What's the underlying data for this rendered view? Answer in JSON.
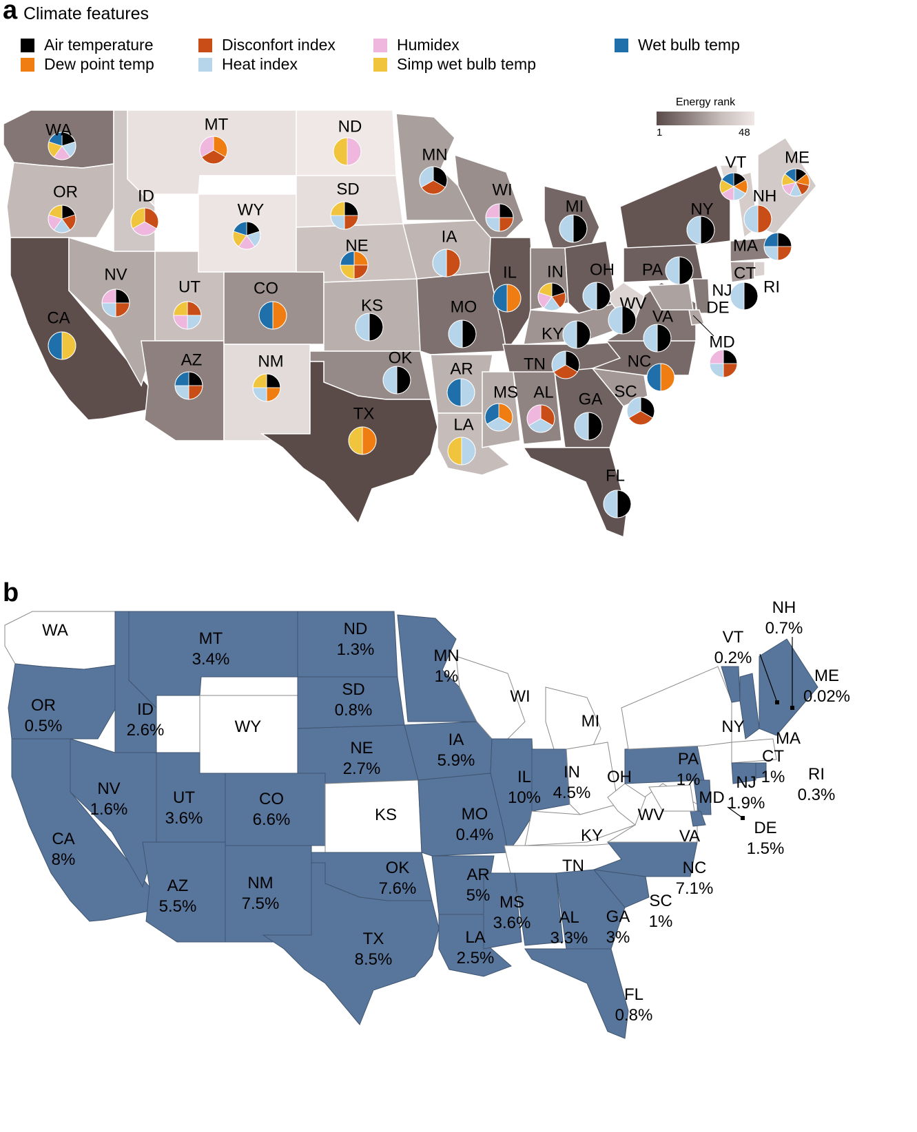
{
  "panel_a": {
    "letter": "a",
    "legend_title": "Climate features",
    "features": [
      {
        "key": "air",
        "label": "Air temperature",
        "color": "#000000"
      },
      {
        "key": "dew",
        "label": "Dew point temp",
        "color": "#f07d12"
      },
      {
        "key": "disc",
        "label": "Disconfort index",
        "color": "#c84d17"
      },
      {
        "key": "heat",
        "label": "Heat index",
        "color": "#b6d4ea"
      },
      {
        "key": "humi",
        "label": "Humidex",
        "color": "#efb7de"
      },
      {
        "key": "simp",
        "label": "Simp wet bulb temp",
        "color": "#f0c53d"
      },
      {
        "key": "wet",
        "label": "Wet bulb temp",
        "color": "#1f6fab"
      }
    ],
    "colorbar": {
      "title": "Energy rank",
      "min_label": "1",
      "max_label": "48",
      "color_low": "#5a4b49",
      "color_high": "#efe8e6"
    },
    "states": [
      {
        "abbr": "WA",
        "rank": 14,
        "features": [
          "air",
          "heat",
          "humi",
          "simp",
          "wet"
        ]
      },
      {
        "abbr": "OR",
        "rank": 34,
        "features": [
          "air",
          "disc",
          "heat",
          "humi",
          "simp"
        ]
      },
      {
        "abbr": "CA",
        "rank": 2,
        "features": [
          "simp",
          "wet"
        ]
      },
      {
        "abbr": "ID",
        "rank": 38,
        "features": [
          "disc",
          "humi",
          "simp"
        ]
      },
      {
        "abbr": "NV",
        "rank": 29,
        "features": [
          "air",
          "disc",
          "heat",
          "humi"
        ]
      },
      {
        "abbr": "MT",
        "rank": 46,
        "features": [
          "dew",
          "disc",
          "humi"
        ]
      },
      {
        "abbr": "WY",
        "rank": 47,
        "features": [
          "air",
          "heat",
          "humi",
          "simp",
          "wet"
        ]
      },
      {
        "abbr": "UT",
        "rank": 36,
        "features": [
          "disc",
          "heat",
          "humi",
          "simp"
        ]
      },
      {
        "abbr": "AZ",
        "rank": 17,
        "features": [
          "air",
          "disc",
          "heat",
          "wet"
        ]
      },
      {
        "abbr": "CO",
        "rank": 22,
        "features": [
          "dew",
          "wet"
        ]
      },
      {
        "abbr": "NM",
        "rank": 44,
        "features": [
          "air",
          "dew",
          "heat",
          "simp"
        ]
      },
      {
        "abbr": "ND",
        "rank": 48,
        "features": [
          "humi",
          "simp"
        ]
      },
      {
        "abbr": "SD",
        "rank": 45,
        "features": [
          "air",
          "disc",
          "heat",
          "simp"
        ]
      },
      {
        "abbr": "NE",
        "rank": 37,
        "features": [
          "dew",
          "disc",
          "simp",
          "wet"
        ]
      },
      {
        "abbr": "KS",
        "rank": 31,
        "features": [
          "air",
          "heat"
        ]
      },
      {
        "abbr": "OK",
        "rank": 20,
        "features": [
          "air",
          "heat"
        ]
      },
      {
        "abbr": "TX",
        "rank": 1,
        "features": [
          "dew",
          "simp"
        ]
      },
      {
        "abbr": "MN",
        "rank": 26,
        "features": [
          "air",
          "disc",
          "heat"
        ]
      },
      {
        "abbr": "IA",
        "rank": 33,
        "features": [
          "disc",
          "heat"
        ]
      },
      {
        "abbr": "MO",
        "rank": 12,
        "features": [
          "air",
          "heat"
        ]
      },
      {
        "abbr": "AR",
        "rank": 32,
        "features": [
          "heat",
          "wet"
        ]
      },
      {
        "abbr": "LA",
        "rank": 35,
        "features": [
          "heat",
          "simp"
        ]
      },
      {
        "abbr": "WI",
        "rank": 21,
        "features": [
          "air",
          "disc",
          "heat",
          "humi"
        ]
      },
      {
        "abbr": "IL",
        "rank": 5,
        "features": [
          "dew",
          "wet"
        ]
      },
      {
        "abbr": "MI",
        "rank": 9,
        "features": [
          "air",
          "heat"
        ]
      },
      {
        "abbr": "IN",
        "rank": 19,
        "features": [
          "air",
          "disc",
          "heat",
          "humi",
          "simp"
        ]
      },
      {
        "abbr": "OH",
        "rank": 6,
        "features": [
          "air",
          "heat"
        ]
      },
      {
        "abbr": "KY",
        "rank": 23,
        "features": [
          "air",
          "heat"
        ]
      },
      {
        "abbr": "TN",
        "rank": 11,
        "features": [
          "air",
          "disc",
          "heat"
        ]
      },
      {
        "abbr": "MS",
        "rank": 30,
        "features": [
          "dew",
          "heat",
          "wet"
        ]
      },
      {
        "abbr": "AL",
        "rank": 18,
        "features": [
          "disc",
          "heat",
          "humi"
        ]
      },
      {
        "abbr": "GA",
        "rank": 8,
        "features": [
          "air",
          "heat"
        ]
      },
      {
        "abbr": "FL",
        "rank": 3,
        "features": [
          "air",
          "heat"
        ]
      },
      {
        "abbr": "SC",
        "rank": 24,
        "features": [
          "air",
          "disc",
          "heat"
        ]
      },
      {
        "abbr": "NC",
        "rank": 10,
        "features": [
          "dew",
          "wet"
        ]
      },
      {
        "abbr": "VA",
        "rank": 13,
        "features": [
          "air",
          "heat"
        ]
      },
      {
        "abbr": "WV",
        "rank": 42,
        "features": [
          "air",
          "heat"
        ]
      },
      {
        "abbr": "PA",
        "rank": 7,
        "features": [
          "air",
          "heat"
        ]
      },
      {
        "abbr": "NY",
        "rank": 4,
        "features": [
          "air",
          "heat"
        ]
      },
      {
        "abbr": "VT",
        "rank": 43,
        "features": [
          "air",
          "dew",
          "heat",
          "humi",
          "simp",
          "wet"
        ]
      },
      {
        "abbr": "NH",
        "rank": 40,
        "features": [
          "disc",
          "heat"
        ]
      },
      {
        "abbr": "ME",
        "rank": 39,
        "features": [
          "air",
          "dew",
          "disc",
          "heat",
          "humi",
          "simp",
          "wet"
        ]
      },
      {
        "abbr": "MA",
        "rank": 16,
        "features": [
          "air",
          "disc",
          "heat",
          "wet"
        ]
      },
      {
        "abbr": "CT",
        "rank": 25,
        "features": []
      },
      {
        "abbr": "RI",
        "rank": 41,
        "features": [
          "air",
          "heat"
        ]
      },
      {
        "abbr": "NJ",
        "rank": 15,
        "features": []
      },
      {
        "abbr": "DE",
        "rank": 28,
        "features": []
      },
      {
        "abbr": "MD",
        "rank": 27,
        "features": [
          "air",
          "disc",
          "heat",
          "humi"
        ]
      }
    ]
  },
  "panel_b": {
    "letter": "b",
    "fill_color": "#58759c",
    "empty_color": "#ffffff",
    "states": [
      {
        "abbr": "WA",
        "pct": ""
      },
      {
        "abbr": "OR",
        "pct": "0.5%"
      },
      {
        "abbr": "CA",
        "pct": "8%"
      },
      {
        "abbr": "ID",
        "pct": "2.6%"
      },
      {
        "abbr": "NV",
        "pct": "1.6%"
      },
      {
        "abbr": "MT",
        "pct": "3.4%"
      },
      {
        "abbr": "WY",
        "pct": ""
      },
      {
        "abbr": "UT",
        "pct": "3.6%"
      },
      {
        "abbr": "AZ",
        "pct": "5.5%"
      },
      {
        "abbr": "CO",
        "pct": "6.6%"
      },
      {
        "abbr": "NM",
        "pct": "7.5%"
      },
      {
        "abbr": "ND",
        "pct": "1.3%"
      },
      {
        "abbr": "SD",
        "pct": "0.8%"
      },
      {
        "abbr": "NE",
        "pct": "2.7%"
      },
      {
        "abbr": "KS",
        "pct": ""
      },
      {
        "abbr": "OK",
        "pct": "7.6%"
      },
      {
        "abbr": "TX",
        "pct": "8.5%"
      },
      {
        "abbr": "MN",
        "pct": "1%"
      },
      {
        "abbr": "IA",
        "pct": "5.9%"
      },
      {
        "abbr": "MO",
        "pct": "0.4%"
      },
      {
        "abbr": "AR",
        "pct": "5%"
      },
      {
        "abbr": "LA",
        "pct": "2.5%"
      },
      {
        "abbr": "WI",
        "pct": ""
      },
      {
        "abbr": "IL",
        "pct": "10%"
      },
      {
        "abbr": "MI",
        "pct": ""
      },
      {
        "abbr": "IN",
        "pct": "4.5%"
      },
      {
        "abbr": "OH",
        "pct": ""
      },
      {
        "abbr": "KY",
        "pct": ""
      },
      {
        "abbr": "TN",
        "pct": ""
      },
      {
        "abbr": "MS",
        "pct": "3.6%"
      },
      {
        "abbr": "AL",
        "pct": "3.3%"
      },
      {
        "abbr": "GA",
        "pct": "3%"
      },
      {
        "abbr": "FL",
        "pct": "0.8%"
      },
      {
        "abbr": "SC",
        "pct": "1%"
      },
      {
        "abbr": "NC",
        "pct": "7.1%"
      },
      {
        "abbr": "VA",
        "pct": ""
      },
      {
        "abbr": "WV",
        "pct": ""
      },
      {
        "abbr": "PA",
        "pct": "1%"
      },
      {
        "abbr": "NY",
        "pct": ""
      },
      {
        "abbr": "VT",
        "pct": "0.2%"
      },
      {
        "abbr": "NH",
        "pct": "0.7%"
      },
      {
        "abbr": "ME",
        "pct": "0.02%"
      },
      {
        "abbr": "MA",
        "pct": ""
      },
      {
        "abbr": "CT",
        "pct": "1%"
      },
      {
        "abbr": "RI",
        "pct": "0.3%"
      },
      {
        "abbr": "NJ",
        "pct": "1.9%"
      },
      {
        "abbr": "DE",
        "pct": "1.5%"
      },
      {
        "abbr": "MD",
        "pct": ""
      }
    ]
  }
}
